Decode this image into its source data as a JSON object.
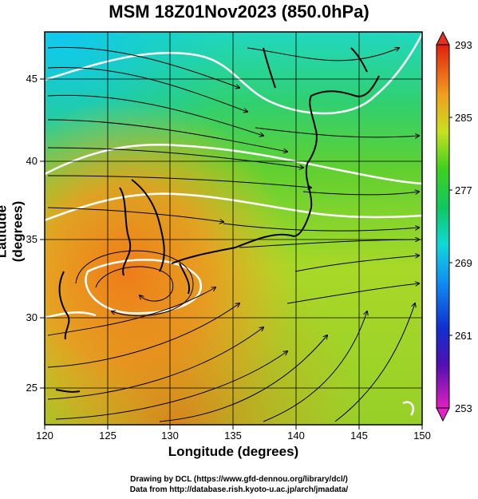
{
  "title": "MSM 18Z01Nov2023 (850.0hPa)",
  "xaxis": {
    "label": "Longitude (degrees)",
    "ticks": [
      "120",
      "125",
      "130",
      "135",
      "140",
      "145",
      "150"
    ],
    "range": [
      120,
      150
    ]
  },
  "yaxis": {
    "label": "Latitude  (degrees)",
    "ticks": [
      "25",
      "30",
      "35",
      "40",
      "45"
    ],
    "range": [
      22.4,
      47.6
    ]
  },
  "colorbar": {
    "ticks": [
      "293",
      "285",
      "277",
      "269",
      "261",
      "253"
    ],
    "min": 253,
    "max": 293
  },
  "footer": {
    "line1": "Drawing by DCL (https://www.gfd-dennou.org/library/dcl/)",
    "line2": "Data from http://database.rish.kyoto-u.ac.jp/arch/jmadata/"
  }
}
